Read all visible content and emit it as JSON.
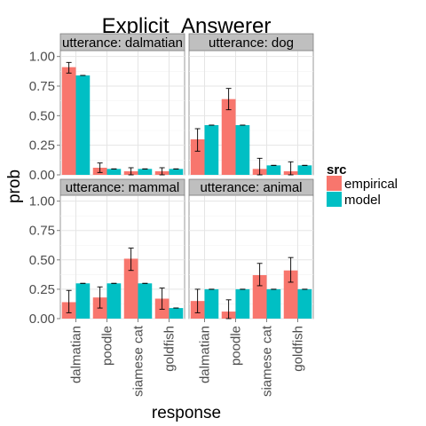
{
  "chart_data": {
    "type": "bar",
    "title": "Explicit_Answerer",
    "xlabel": "response",
    "ylabel": "prob",
    "categories": [
      "dalmatian",
      "poodle",
      "siamese cat",
      "goldfish"
    ],
    "ylim": [
      0,
      1.05
    ],
    "yticks": [
      0.0,
      0.25,
      0.5,
      0.75,
      1.0
    ],
    "ytick_labels": [
      "0.00",
      "0.25",
      "0.50",
      "0.75",
      "1.00"
    ],
    "grid": true,
    "legend": {
      "title": "src",
      "placement": "right",
      "entries": [
        {
          "name": "empirical",
          "color": "#F8766D"
        },
        {
          "name": "model",
          "color": "#00BFC4"
        }
      ]
    },
    "panels": [
      {
        "label": "utterance: dalmatian",
        "series": [
          {
            "name": "empirical",
            "values": [
              0.91,
              0.06,
              0.03,
              0.03
            ],
            "err_low": [
              0.86,
              0.02,
              0.0,
              0.0
            ],
            "err_high": [
              0.95,
              0.1,
              0.06,
              0.06
            ]
          },
          {
            "name": "model",
            "values": [
              0.84,
              0.05,
              0.05,
              0.05
            ],
            "err_low": [
              0.84,
              0.05,
              0.05,
              0.05
            ],
            "err_high": [
              0.84,
              0.05,
              0.05,
              0.05
            ]
          }
        ]
      },
      {
        "label": "utterance: dog",
        "series": [
          {
            "name": "empirical",
            "values": [
              0.3,
              0.64,
              0.05,
              0.03
            ],
            "err_low": [
              0.2,
              0.55,
              0.0,
              0.0
            ],
            "err_high": [
              0.39,
              0.73,
              0.14,
              0.11
            ]
          },
          {
            "name": "model",
            "values": [
              0.42,
              0.42,
              0.08,
              0.08
            ],
            "err_low": [
              0.42,
              0.42,
              0.08,
              0.08
            ],
            "err_high": [
              0.42,
              0.42,
              0.08,
              0.08
            ]
          }
        ]
      },
      {
        "label": "utterance: mammal",
        "series": [
          {
            "name": "empirical",
            "values": [
              0.14,
              0.18,
              0.51,
              0.17
            ],
            "err_low": [
              0.05,
              0.09,
              0.41,
              0.08
            ],
            "err_high": [
              0.24,
              0.27,
              0.6,
              0.26
            ]
          },
          {
            "name": "model",
            "values": [
              0.3,
              0.3,
              0.3,
              0.09
            ],
            "err_low": [
              0.3,
              0.3,
              0.3,
              0.09
            ],
            "err_high": [
              0.3,
              0.3,
              0.3,
              0.09
            ]
          }
        ]
      },
      {
        "label": "utterance: animal",
        "series": [
          {
            "name": "empirical",
            "values": [
              0.15,
              0.06,
              0.37,
              0.41
            ],
            "err_low": [
              0.05,
              0.0,
              0.28,
              0.31
            ],
            "err_high": [
              0.25,
              0.16,
              0.47,
              0.52
            ]
          },
          {
            "name": "model",
            "values": [
              0.25,
              0.25,
              0.25,
              0.25
            ],
            "err_low": [
              0.25,
              0.25,
              0.25,
              0.25
            ],
            "err_high": [
              0.25,
              0.25,
              0.25,
              0.25
            ]
          }
        ]
      }
    ]
  }
}
